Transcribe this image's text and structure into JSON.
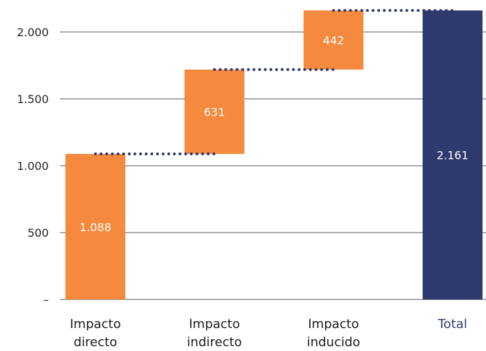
{
  "chart_data": {
    "type": "bar",
    "subtype": "waterfall",
    "categories": [
      [
        "Impacto",
        "directo"
      ],
      [
        "Impacto",
        "indirecto"
      ],
      [
        "Impacto",
        "inducido"
      ],
      [
        "Total"
      ]
    ],
    "values": [
      1088,
      631,
      442,
      2161
    ],
    "is_total": [
      false,
      false,
      false,
      true
    ],
    "data_labels": [
      "1.088",
      "631",
      "442",
      "2.161"
    ],
    "yticks": [
      0,
      500,
      1000,
      1500,
      2000
    ],
    "ytick_labels": [
      "–",
      "500",
      "1.000",
      "1.500",
      "2.000"
    ],
    "ylim": [
      0,
      2161
    ],
    "grid": true,
    "title": "",
    "xlabel": "",
    "ylabel": "",
    "colors": {
      "increment": "#F5893D",
      "total": "#2E3A6E",
      "gridline": "#A6ABAF",
      "connector": "#2E3A6E",
      "total_label": "#2E3A6E"
    }
  }
}
